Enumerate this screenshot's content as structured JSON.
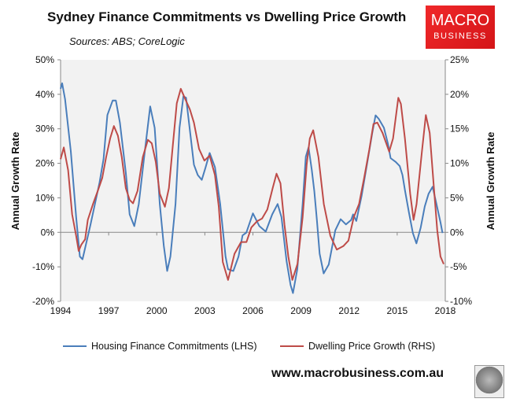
{
  "title": "Sydney Finance Commitments vs Dwelling Price Growth",
  "subtitle": "Sources: ABS; CoreLogic",
  "logo": {
    "line1": "MACRO",
    "line2": "BUSINESS"
  },
  "footer": "www.macrobusiness.com.au",
  "colors": {
    "lhs": "#4a7ebb",
    "rhs": "#be4b48",
    "plot_bg": "#f2f2f2",
    "logo_bg": "#e8201f"
  },
  "chart_data": {
    "type": "line",
    "title": "Sydney Finance Commitments vs Dwelling Price Growth",
    "xlim": [
      1994,
      2018
    ],
    "x_ticks": [
      "1994",
      "1997",
      "2000",
      "2003",
      "2006",
      "2009",
      "2012",
      "2015",
      "2018"
    ],
    "ylabel_left": "Annual Growth Rate",
    "ylabel_right": "Annual Growth Rate",
    "ylim_left": [
      -20,
      50
    ],
    "ylim_right": [
      -10,
      25
    ],
    "y_ticks_left": [
      "50%",
      "40%",
      "30%",
      "20%",
      "10%",
      "0%",
      "-10%",
      "-20%"
    ],
    "y_ticks_right": [
      "25%",
      "20%",
      "15%",
      "10%",
      "5%",
      "0%",
      "-5%",
      "-10%"
    ],
    "grid": false,
    "legend_position": "bottom",
    "series": [
      {
        "name": "Housing Finance Commitments (LHS)",
        "axis": "left",
        "points": [
          [
            1994.0,
            41.6
          ],
          [
            1994.1,
            43.2
          ],
          [
            1994.28,
            38.6
          ],
          [
            1994.64,
            23.5
          ],
          [
            1994.97,
            4.4
          ],
          [
            1995.2,
            -7.0
          ],
          [
            1995.37,
            -7.8
          ],
          [
            1995.86,
            2.1
          ],
          [
            1996.43,
            14.4
          ],
          [
            1996.68,
            21.2
          ],
          [
            1996.92,
            34.0
          ],
          [
            1997.25,
            38.2
          ],
          [
            1997.45,
            38.2
          ],
          [
            1997.7,
            31.8
          ],
          [
            1998.07,
            17.3
          ],
          [
            1998.31,
            5.2
          ],
          [
            1998.6,
            1.8
          ],
          [
            1998.88,
            8.2
          ],
          [
            1999.29,
            24.9
          ],
          [
            1999.59,
            36.5
          ],
          [
            1999.87,
            30.3
          ],
          [
            2000.19,
            8.2
          ],
          [
            2000.44,
            -3.9
          ],
          [
            2000.65,
            -11.2
          ],
          [
            2000.85,
            -7.0
          ],
          [
            2001.17,
            8.2
          ],
          [
            2001.42,
            30.3
          ],
          [
            2001.66,
            39.4
          ],
          [
            2001.83,
            39.0
          ],
          [
            2002.07,
            29.5
          ],
          [
            2002.32,
            19.6
          ],
          [
            2002.56,
            16.6
          ],
          [
            2002.81,
            15.2
          ],
          [
            2003.05,
            18.9
          ],
          [
            2003.3,
            23.0
          ],
          [
            2003.63,
            18.9
          ],
          [
            2003.96,
            8.2
          ],
          [
            2004.29,
            -7.0
          ],
          [
            2004.45,
            -10.7
          ],
          [
            2004.78,
            -11.2
          ],
          [
            2005.1,
            -7.0
          ],
          [
            2005.35,
            -0.9
          ],
          [
            2005.59,
            -0.1
          ],
          [
            2006.0,
            5.5
          ],
          [
            2006.4,
            1.8
          ],
          [
            2006.8,
            0.2
          ],
          [
            2007.2,
            5.2
          ],
          [
            2007.54,
            8.2
          ],
          [
            2007.78,
            4.4
          ],
          [
            2008.1,
            -8.4
          ],
          [
            2008.35,
            -15.3
          ],
          [
            2008.5,
            -17.6
          ],
          [
            2008.77,
            -10.7
          ],
          [
            2009.1,
            8.2
          ],
          [
            2009.3,
            21.9
          ],
          [
            2009.47,
            24.6
          ],
          [
            2009.67,
            18.1
          ],
          [
            2009.83,
            12.0
          ],
          [
            2009.99,
            3.6
          ],
          [
            2010.16,
            -6.2
          ],
          [
            2010.41,
            -11.9
          ],
          [
            2010.73,
            -9.3
          ],
          [
            2011.14,
            0.6
          ],
          [
            2011.47,
            3.8
          ],
          [
            2011.8,
            2.3
          ],
          [
            2012.13,
            3.6
          ],
          [
            2012.25,
            5.2
          ],
          [
            2012.45,
            3.3
          ],
          [
            2012.78,
            10.5
          ],
          [
            2013.11,
            19.6
          ],
          [
            2013.44,
            28.7
          ],
          [
            2013.65,
            33.9
          ],
          [
            2013.85,
            32.9
          ],
          [
            2014.17,
            30.3
          ],
          [
            2014.42,
            25.7
          ],
          [
            2014.59,
            21.5
          ],
          [
            2014.91,
            20.4
          ],
          [
            2015.16,
            19.2
          ],
          [
            2015.33,
            16.6
          ],
          [
            2015.49,
            12.0
          ],
          [
            2015.73,
            5.9
          ],
          [
            2015.98,
            -0.2
          ],
          [
            2016.2,
            -3.2
          ],
          [
            2016.47,
            1.4
          ],
          [
            2016.72,
            7.5
          ],
          [
            2016.96,
            11.2
          ],
          [
            2017.21,
            13.2
          ],
          [
            2017.45,
            8.2
          ],
          [
            2017.7,
            2.9
          ],
          [
            2017.83,
            -0.2
          ]
        ]
      },
      {
        "name": "Dwelling Price Growth (RHS)",
        "axis": "right",
        "points": [
          [
            1994.0,
            10.6
          ],
          [
            1994.2,
            12.3
          ],
          [
            1994.47,
            9.0
          ],
          [
            1994.72,
            2.6
          ],
          [
            1994.97,
            -0.5
          ],
          [
            1995.13,
            -2.7
          ],
          [
            1995.29,
            -1.8
          ],
          [
            1995.53,
            -1.0
          ],
          [
            1995.7,
            1.8
          ],
          [
            1996.02,
            4.1
          ],
          [
            1996.35,
            6.2
          ],
          [
            1996.6,
            7.9
          ],
          [
            1996.84,
            10.9
          ],
          [
            1997.09,
            13.6
          ],
          [
            1997.33,
            15.4
          ],
          [
            1997.58,
            14.0
          ],
          [
            1997.82,
            10.9
          ],
          [
            1998.07,
            6.4
          ],
          [
            1998.31,
            4.7
          ],
          [
            1998.52,
            4.2
          ],
          [
            1998.8,
            6.0
          ],
          [
            1999.13,
            10.9
          ],
          [
            1999.45,
            13.4
          ],
          [
            1999.69,
            12.9
          ],
          [
            1999.94,
            10.2
          ],
          [
            2000.19,
            5.6
          ],
          [
            2000.51,
            3.7
          ],
          [
            2000.76,
            6.4
          ],
          [
            2001.0,
            12.5
          ],
          [
            2001.25,
            18.7
          ],
          [
            2001.5,
            20.8
          ],
          [
            2001.74,
            19.5
          ],
          [
            2002.07,
            17.8
          ],
          [
            2002.32,
            15.9
          ],
          [
            2002.64,
            12.1
          ],
          [
            2002.97,
            10.4
          ],
          [
            2003.3,
            11.1
          ],
          [
            2003.63,
            8.3
          ],
          [
            2003.87,
            3.7
          ],
          [
            2004.12,
            -4.3
          ],
          [
            2004.45,
            -6.9
          ],
          [
            2004.85,
            -3.1
          ],
          [
            2005.26,
            -1.4
          ],
          [
            2005.6,
            -1.4
          ],
          [
            2005.9,
            0.7
          ],
          [
            2006.25,
            1.6
          ],
          [
            2006.57,
            2.0
          ],
          [
            2006.9,
            3.3
          ],
          [
            2007.23,
            6.4
          ],
          [
            2007.47,
            8.5
          ],
          [
            2007.72,
            7.1
          ],
          [
            2007.97,
            1.1
          ],
          [
            2008.21,
            -3.5
          ],
          [
            2008.46,
            -6.9
          ],
          [
            2008.78,
            -4.6
          ],
          [
            2009.1,
            2.2
          ],
          [
            2009.35,
            9.8
          ],
          [
            2009.55,
            13.6
          ],
          [
            2009.76,
            14.8
          ],
          [
            2010.09,
            10.9
          ],
          [
            2010.42,
            4.1
          ],
          [
            2010.83,
            -0.5
          ],
          [
            2011.23,
            -2.5
          ],
          [
            2011.64,
            -2.0
          ],
          [
            2011.96,
            -1.2
          ],
          [
            2012.29,
            2.2
          ],
          [
            2012.62,
            4.1
          ],
          [
            2012.94,
            7.9
          ],
          [
            2013.27,
            12.1
          ],
          [
            2013.52,
            15.7
          ],
          [
            2013.76,
            15.9
          ],
          [
            2014.09,
            14.4
          ],
          [
            2014.5,
            11.7
          ],
          [
            2014.74,
            13.6
          ],
          [
            2015.07,
            19.5
          ],
          [
            2015.23,
            18.6
          ],
          [
            2015.48,
            13.6
          ],
          [
            2015.81,
            5.6
          ],
          [
            2016.02,
            1.8
          ],
          [
            2016.21,
            4.1
          ],
          [
            2016.54,
            11.7
          ],
          [
            2016.79,
            17.0
          ],
          [
            2017.03,
            14.4
          ],
          [
            2017.28,
            6.8
          ],
          [
            2017.5,
            0.3
          ],
          [
            2017.7,
            -3.5
          ],
          [
            2017.9,
            -4.6
          ]
        ]
      }
    ]
  }
}
